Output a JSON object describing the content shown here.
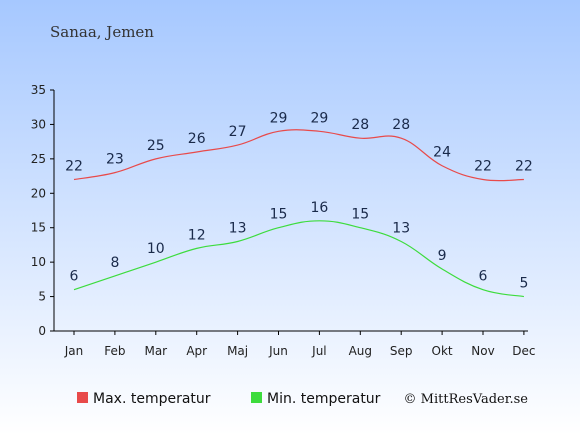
{
  "location": "Sanaa, Jemen",
  "credit": "© MittResVader.se",
  "colors": {
    "max": "#e84a4a",
    "min": "#3ddc3d",
    "bg_top": "#a6c8ff",
    "bg_bottom": "#ffffff",
    "axis": "#000000",
    "label": "#1a2a4a"
  },
  "chart_data": {
    "type": "line",
    "categories": [
      "Jan",
      "Feb",
      "Mar",
      "Apr",
      "Maj",
      "Jun",
      "Jul",
      "Aug",
      "Sep",
      "Okt",
      "Nov",
      "Dec"
    ],
    "series": [
      {
        "name": "Max. temperatur",
        "values": [
          22,
          23,
          25,
          26,
          27,
          29,
          29,
          28,
          28,
          24,
          22,
          22
        ]
      },
      {
        "name": "Min. temperatur",
        "values": [
          6,
          8,
          10,
          12,
          13,
          15,
          16,
          15,
          13,
          9,
          6,
          5
        ]
      }
    ],
    "yticks": [
      0,
      5,
      10,
      15,
      20,
      25,
      30,
      35
    ],
    "ylim": [
      0,
      35
    ],
    "grid": false,
    "legend_position": "bottom-left"
  }
}
